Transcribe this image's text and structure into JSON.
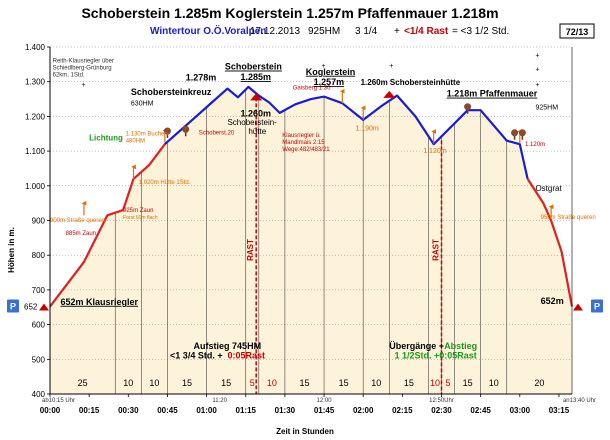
{
  "header": {
    "title": "Schoberstein 1.285m  Koglerstein 1.257m  Pfaffenmauer  1.218m",
    "sub_tour": "Wintertour  O.Ö.Voralpen",
    "sub_date": "17.12.2013",
    "sub_hm": "925HM",
    "sub_time": "3 1/4",
    "sub_plus": "+",
    "sub_rast": "<1/4 Rast",
    "sub_total": "= <3 1/2 Std.",
    "page": "72/13"
  },
  "colors": {
    "profile_red": "#e02020",
    "profile_blue": "#1a1adc",
    "fill": "#fdf3da",
    "title_blue": "#1a1adc",
    "dark_red": "#cc0000",
    "green": "#1a9a1a",
    "orange": "#e07000",
    "parking": "#3a6fd8"
  },
  "chart_data": {
    "type": "area",
    "title": "Schoberstein 1.285m Koglerstein 1.257m Pfaffenmauer 1.218m",
    "xlabel": "Zeit in Stunden",
    "ylabel": "Höhen in m.",
    "xlim": [
      0,
      200
    ],
    "ylim": [
      400,
      1400
    ],
    "yticks": [
      400,
      500,
      600,
      700,
      800,
      900,
      1000,
      1100,
      1200,
      1300,
      1400
    ],
    "xticks": [
      {
        "t": 0,
        "label": "00:00"
      },
      {
        "t": 15,
        "label": "00:15"
      },
      {
        "t": 30,
        "label": "00:30"
      },
      {
        "t": 45,
        "label": "00:45"
      },
      {
        "t": 60,
        "label": "01:00"
      },
      {
        "t": 75,
        "label": "01:15"
      },
      {
        "t": 90,
        "label": "01:30"
      },
      {
        "t": 105,
        "label": "01:45"
      },
      {
        "t": 120,
        "label": "02:00"
      },
      {
        "t": 135,
        "label": "02:15"
      },
      {
        "t": 150,
        "label": "02:30"
      },
      {
        "t": 165,
        "label": "02:45"
      },
      {
        "t": 180,
        "label": "03:00"
      },
      {
        "t": 195,
        "label": "03:15"
      }
    ],
    "clock_labels": [
      {
        "t": 0,
        "label": "ab10:15 Uhr"
      },
      {
        "t": 65,
        "label": "11:20"
      },
      {
        "t": 105,
        "label": "12:00"
      },
      {
        "t": 150,
        "label": "12:50Uhr"
      },
      {
        "t": 200,
        "label": "an13:40 Uhr"
      }
    ],
    "series": [
      {
        "name": "Aufstieg",
        "color": "red",
        "points": [
          [
            0,
            652
          ],
          [
            13,
            780
          ],
          [
            22,
            915
          ],
          [
            28,
            930
          ],
          [
            32,
            1020
          ],
          [
            38,
            1060
          ],
          [
            44,
            1120
          ]
        ]
      },
      {
        "name": "Kamm",
        "color": "blue",
        "points": [
          [
            44,
            1120
          ],
          [
            56,
            1200
          ],
          [
            62,
            1240
          ],
          [
            68,
            1280
          ],
          [
            72,
            1255
          ],
          [
            76,
            1285
          ],
          [
            80,
            1260
          ],
          [
            84,
            1240
          ],
          [
            88,
            1210
          ],
          [
            94,
            1235
          ],
          [
            100,
            1250
          ],
          [
            105,
            1257
          ],
          [
            112,
            1238
          ],
          [
            120,
            1190
          ],
          [
            127,
            1230
          ],
          [
            133,
            1260
          ],
          [
            140,
            1200
          ],
          [
            147,
            1120
          ],
          [
            155,
            1180
          ],
          [
            160,
            1218
          ],
          [
            165,
            1218
          ],
          [
            175,
            1130
          ],
          [
            180,
            1120
          ],
          [
            183,
            1020
          ]
        ]
      },
      {
        "name": "Abstieg",
        "color": "red",
        "points": [
          [
            183,
            1020
          ],
          [
            189,
            950
          ],
          [
            192,
            900
          ],
          [
            196,
            810
          ],
          [
            200,
            652
          ]
        ]
      }
    ],
    "segments": [
      {
        "from": 0,
        "to": 25,
        "label": "25"
      },
      {
        "from": 25,
        "to": 35,
        "label": "10"
      },
      {
        "from": 35,
        "to": 45,
        "label": "10"
      },
      {
        "from": 45,
        "to": 60,
        "label": "15"
      },
      {
        "from": 60,
        "to": 75,
        "label": "15"
      },
      {
        "from": 75,
        "to": 80,
        "label": "5"
      },
      {
        "from": 80,
        "to": 90,
        "label": "10"
      },
      {
        "from": 90,
        "to": 105,
        "label": "15"
      },
      {
        "from": 105,
        "to": 120,
        "label": "15"
      },
      {
        "from": 120,
        "to": 130,
        "label": "10"
      },
      {
        "from": 130,
        "to": 145,
        "label": "15"
      },
      {
        "from": 145,
        "to": 150,
        "label": "10"
      },
      {
        "from": 150,
        "to": 155,
        "label": "5"
      },
      {
        "from": 155,
        "to": 165,
        "label": "15"
      },
      {
        "from": 165,
        "to": 175,
        "label": "10"
      },
      {
        "from": 175,
        "to": 200,
        "label": "20"
      }
    ],
    "rest_segments": [
      5,
      6,
      11,
      12
    ],
    "rast_markers": [
      {
        "t": 79
      },
      {
        "t": 150
      }
    ],
    "rast_label": "RAST",
    "parking_label": "P",
    "parking_points": [
      {
        "t": 0,
        "alt": 652
      },
      {
        "t": 200,
        "alt": 652
      }
    ],
    "start_altitude_label": "652",
    "summit_flags": [
      {
        "t": 79,
        "alt": 1255
      },
      {
        "t": 130,
        "alt": 1262
      }
    ],
    "wayposts": [
      {
        "t": 13,
        "alt": 915
      },
      {
        "t": 32,
        "alt": 1020
      },
      {
        "t": 44,
        "alt": 1125
      },
      {
        "t": 112,
        "alt": 1238
      },
      {
        "t": 120,
        "alt": 1190
      },
      {
        "t": 147,
        "alt": 1122
      },
      {
        "t": 180,
        "alt": 1122
      },
      {
        "t": 192,
        "alt": 905
      }
    ],
    "tree_markers": [
      {
        "t": 45,
        "alt": 1155
      },
      {
        "t": 52,
        "alt": 1160
      },
      {
        "t": 160,
        "alt": 1225
      },
      {
        "t": 178,
        "alt": 1150
      },
      {
        "t": 181,
        "alt": 1150
      }
    ],
    "annotations": [
      {
        "text": "Reith-Klausriegler über",
        "t": 1,
        "alt": 1355,
        "size": 6,
        "color": "#333333"
      },
      {
        "text": "Schiedlberg-Grünburg",
        "t": 1,
        "alt": 1335,
        "size": 6,
        "color": "#333333"
      },
      {
        "text": "62km, 1Std.",
        "t": 1,
        "alt": 1315,
        "size": 6,
        "color": "#333333"
      },
      {
        "text": "1.278m",
        "t": 52,
        "alt": 1303,
        "size": 9,
        "color": "#000000",
        "bold": true
      },
      {
        "text": "Schobersteinkreuz",
        "t": 31,
        "alt": 1262,
        "size": 9,
        "color": "#000000",
        "bold": true
      },
      {
        "text": "630HM",
        "t": 31,
        "alt": 1232,
        "size": 7,
        "color": "#000000"
      },
      {
        "text": "Schoberstein",
        "t": 67,
        "alt": 1335,
        "size": 9,
        "color": "#000000",
        "bold": true,
        "underline": true
      },
      {
        "text": "1.285m",
        "t": 73,
        "alt": 1305,
        "size": 9,
        "color": "#000000",
        "bold": true,
        "underline": true
      },
      {
        "text": "1.260m",
        "t": 73,
        "alt": 1200,
        "size": 9,
        "color": "#000000",
        "bold": true
      },
      {
        "text": "Schoberstein-",
        "t": 68,
        "alt": 1175,
        "size": 8,
        "color": "#000000"
      },
      {
        "text": "hütte",
        "t": 76,
        "alt": 1150,
        "size": 8,
        "color": "#000000"
      },
      {
        "text": "Lichtung",
        "t": 15,
        "alt": 1130,
        "size": 8,
        "color": "#1a9a1a",
        "bold": true
      },
      {
        "text": "1.130m Buchen",
        "t": 29,
        "alt": 1145,
        "size": 6,
        "color": "#e07000"
      },
      {
        "text": "480HM",
        "t": 29,
        "alt": 1125,
        "size": 6,
        "color": "#e07000"
      },
      {
        "text": "Schoberst.20",
        "t": 57,
        "alt": 1148,
        "size": 6,
        "color": "#cc0000"
      },
      {
        "text": "1.020m Hütte 1Std.",
        "t": 34,
        "alt": 1005,
        "size": 6,
        "color": "#e07000"
      },
      {
        "text": "925m Zaun",
        "t": 28,
        "alt": 925,
        "size": 6,
        "color": "#cc0000"
      },
      {
        "text": "Forst 60m flach",
        "t": 28,
        "alt": 905,
        "size": 5,
        "color": "#e07000"
      },
      {
        "text": "900m Straße queren",
        "t": 0,
        "alt": 895,
        "size": 6,
        "color": "#e07000"
      },
      {
        "text": "885m Zaun",
        "t": 6,
        "alt": 858,
        "size": 6,
        "color": "#cc0000"
      },
      {
        "text": "Gaisberg 1:30",
        "t": 93,
        "alt": 1278,
        "size": 6,
        "color": "#cc0000"
      },
      {
        "text": "Koglerstein",
        "t": 98,
        "alt": 1320,
        "size": 9,
        "color": "#000000",
        "bold": true,
        "underline": true
      },
      {
        "text": "1.257m",
        "t": 101,
        "alt": 1290,
        "size": 9,
        "color": "#000000",
        "bold": true,
        "underline": true
      },
      {
        "text": "Klausriegler ü.",
        "t": 89,
        "alt": 1140,
        "size": 6,
        "color": "#cc0000"
      },
      {
        "text": "Mandlmais 2:15",
        "t": 89,
        "alt": 1120,
        "size": 6,
        "color": "#cc0000"
      },
      {
        "text": "Wege:482/483/21",
        "t": 89,
        "alt": 1100,
        "size": 6,
        "color": "#cc0000"
      },
      {
        "text": "1.190m",
        "t": 117,
        "alt": 1160,
        "size": 7,
        "color": "#e07000"
      },
      {
        "text": "1.260m Schobersteinhütte",
        "t": 119,
        "alt": 1290,
        "size": 8,
        "color": "#000000",
        "bold": true
      },
      {
        "text": "1.120m",
        "t": 143,
        "alt": 1095,
        "size": 7,
        "color": "#e07000"
      },
      {
        "text": "1.218m Pfaffenmauer",
        "t": 152,
        "alt": 1257,
        "size": 9,
        "color": "#000000",
        "bold": true,
        "underline": true
      },
      {
        "text": "925HM",
        "t": 186,
        "alt": 1220,
        "size": 7,
        "color": "#000000"
      },
      {
        "text": "1.120m",
        "t": 182,
        "alt": 1115,
        "size": 6,
        "color": "#cc0000"
      },
      {
        "text": "Ostgrat",
        "t": 186,
        "alt": 985,
        "size": 8,
        "color": "#000000"
      },
      {
        "text": "950m Straße queren",
        "t": 188,
        "alt": 905,
        "size": 6,
        "color": "#e07000"
      },
      {
        "text": "652m Klausriegler",
        "t": 4,
        "alt": 657,
        "size": 9,
        "color": "#000000",
        "bold": true,
        "underline": true
      },
      {
        "text": "652m",
        "t": 188,
        "alt": 660,
        "size": 9,
        "color": "#000000",
        "bold": true
      },
      {
        "text": "Aufstieg 745HM",
        "t": 55,
        "alt": 530,
        "size": 9,
        "color": "#000000",
        "bold": true
      },
      {
        "text": "<1 3/4 Std. +",
        "t": 46,
        "alt": 502,
        "size": 9,
        "color": "#000000",
        "bold": true
      },
      {
        "text": "0:05Rast",
        "t": 68,
        "alt": 502,
        "size": 9,
        "color": "#cc0000",
        "bold": true
      },
      {
        "text": "Übergänge +",
        "t": 130,
        "alt": 530,
        "size": 9,
        "color": "#000000",
        "bold": true
      },
      {
        "text": "Abstieg",
        "t": 151,
        "alt": 530,
        "size": 9,
        "color": "#1a9a1a",
        "bold": true
      },
      {
        "text": "1 1/2Std. +0:05Rast",
        "t": 132,
        "alt": 502,
        "size": 9,
        "color": "#1a9a1a",
        "bold": true
      },
      {
        "text": "+",
        "t": 12,
        "alt": 1285,
        "size": 7,
        "color": "#000000"
      },
      {
        "text": "+",
        "t": 186,
        "alt": 1370,
        "size": 7,
        "color": "#000000"
      },
      {
        "text": "+",
        "t": 186,
        "alt": 1330,
        "size": 7,
        "color": "#000000"
      },
      {
        "text": "+",
        "t": 186,
        "alt": 1285,
        "size": 7,
        "color": "#000000"
      },
      {
        "text": "+",
        "t": 104,
        "alt": 1340,
        "size": 7,
        "color": "#000000"
      },
      {
        "text": "+",
        "t": 130,
        "alt": 1340,
        "size": 7,
        "color": "#000000"
      }
    ]
  }
}
